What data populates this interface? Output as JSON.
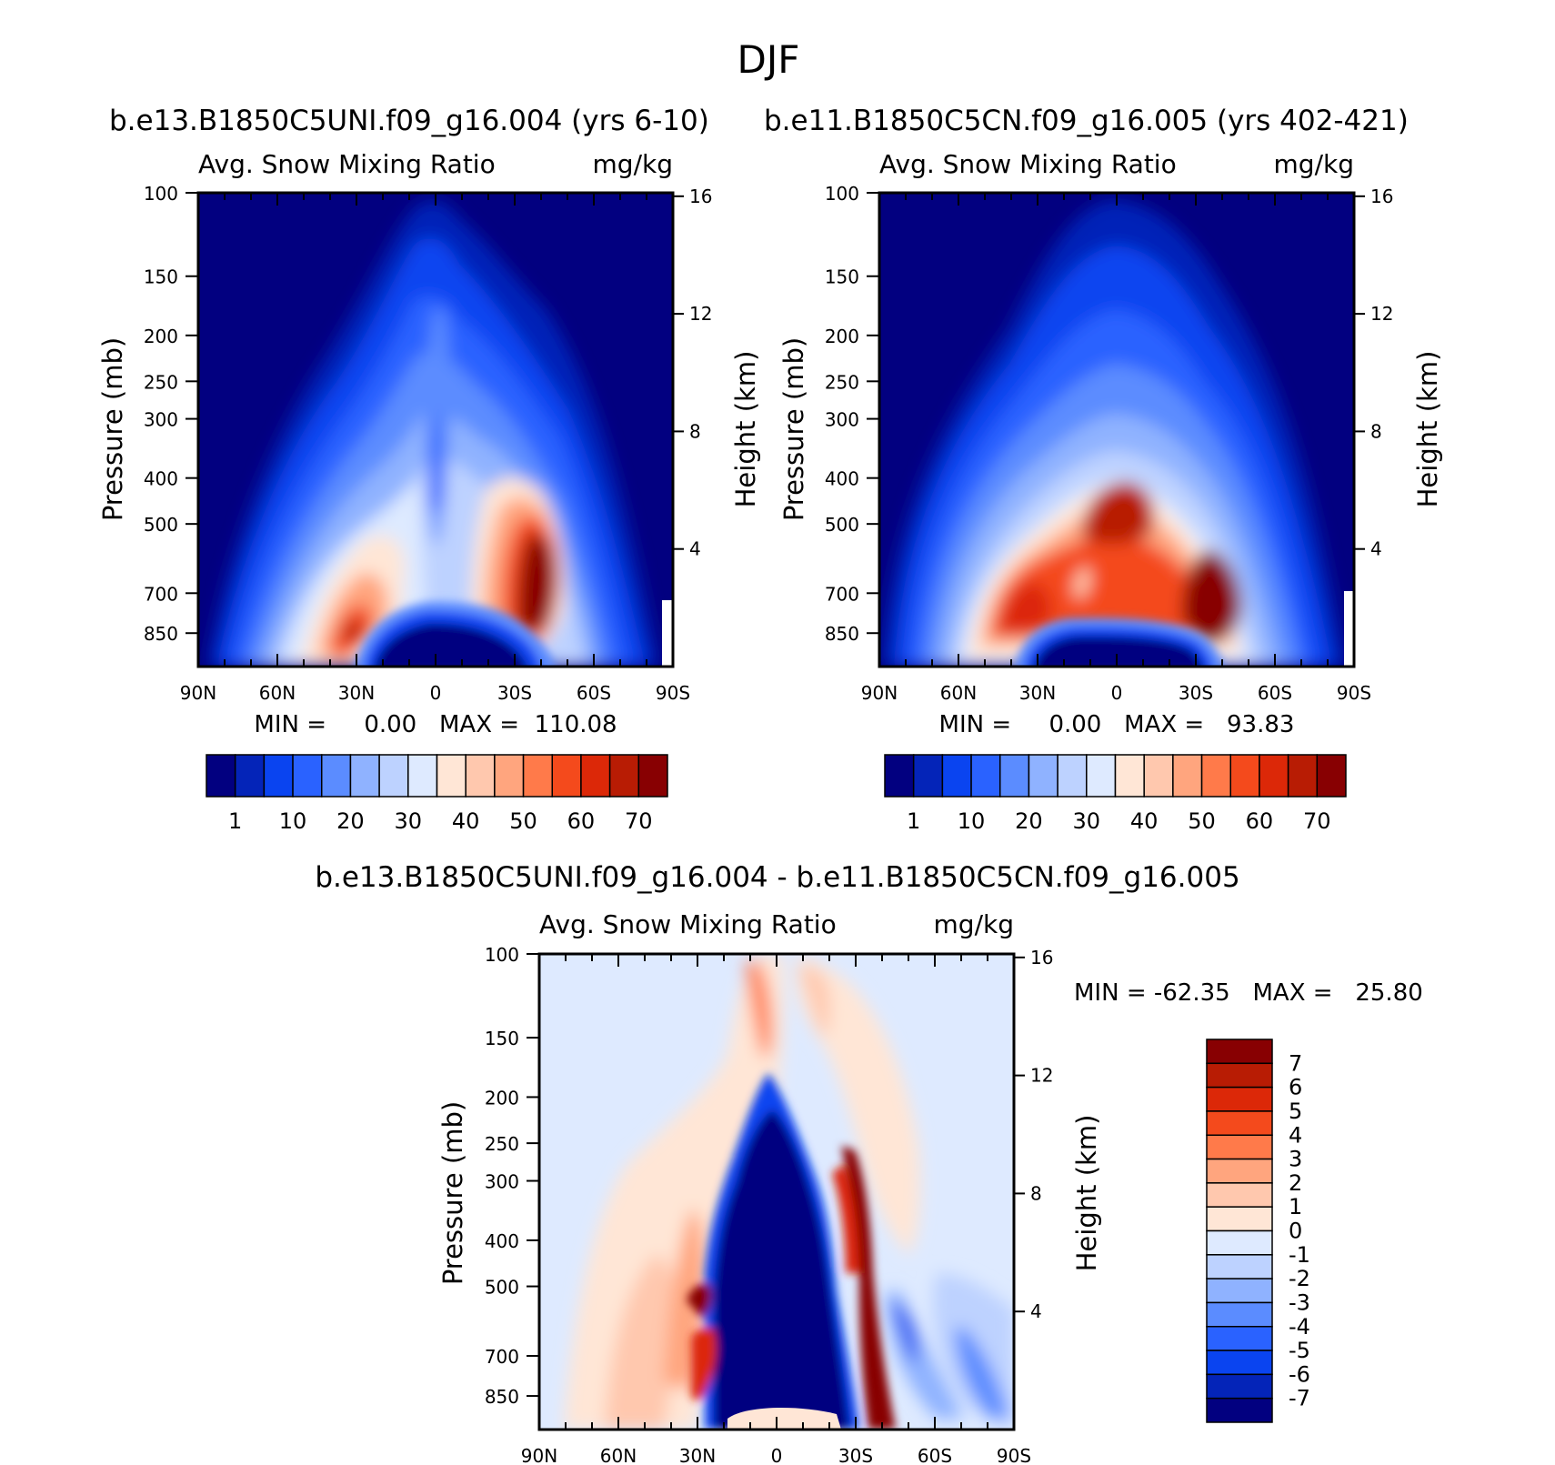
{
  "page_title": "DJF",
  "chart_data": [
    {
      "type": "heatmap",
      "title": "b.e13.B1850C5UNI.f09_g16.004 (yrs 6-10)",
      "subtitle_left": "Avg. Snow Mixing Ratio",
      "subtitle_right": "mg/kg",
      "ylabel": "Pressure (mb)",
      "y2label": "Height (km)",
      "x_ticks": [
        "90N",
        "60N",
        "30N",
        "0",
        "30S",
        "60S",
        "90S"
      ],
      "x_values": [
        90,
        60,
        30,
        0,
        -30,
        -60,
        -90
      ],
      "y_ticks": [
        100,
        150,
        200,
        250,
        300,
        400,
        500,
        700,
        850
      ],
      "ylim": [
        100,
        1000
      ],
      "height_ticks": [
        16,
        12,
        8,
        4
      ],
      "stats": "MIN =     0.00   MAX =  110.08",
      "min": 0.0,
      "max": 110.08,
      "colorbar_labels": [
        "1",
        "10",
        "20",
        "30",
        "40",
        "50",
        "60",
        "70"
      ],
      "colorbar_colors": [
        "#020080",
        "#0424b8",
        "#0a44f0",
        "#2a62ff",
        "#5b8cff",
        "#8fb2ff",
        "#bdd2ff",
        "#deeaff",
        "#ffe6d6",
        "#ffc8ae",
        "#ffa57e",
        "#ff7a4a",
        "#f44a1c",
        "#dc2808",
        "#b81c04",
        "#880002"
      ]
    },
    {
      "type": "heatmap",
      "title": "b.e11.B1850C5CN.f09_g16.005 (yrs 402-421)",
      "subtitle_left": "Avg. Snow Mixing Ratio",
      "subtitle_right": "mg/kg",
      "ylabel": "Pressure (mb)",
      "y2label": "Height (km)",
      "x_ticks": [
        "90N",
        "60N",
        "30N",
        "0",
        "30S",
        "60S",
        "90S"
      ],
      "x_values": [
        90,
        60,
        30,
        0,
        -30,
        -60,
        -90
      ],
      "y_ticks": [
        100,
        150,
        200,
        250,
        300,
        400,
        500,
        700,
        850
      ],
      "ylim": [
        100,
        1000
      ],
      "height_ticks": [
        16,
        12,
        8,
        4
      ],
      "stats": "MIN =     0.00   MAX =   93.83",
      "min": 0.0,
      "max": 93.83,
      "colorbar_labels": [
        "1",
        "10",
        "20",
        "30",
        "40",
        "50",
        "60",
        "70"
      ],
      "colorbar_colors": [
        "#020080",
        "#0424b8",
        "#0a44f0",
        "#2a62ff",
        "#5b8cff",
        "#8fb2ff",
        "#bdd2ff",
        "#deeaff",
        "#ffe6d6",
        "#ffc8ae",
        "#ffa57e",
        "#ff7a4a",
        "#f44a1c",
        "#dc2808",
        "#b81c04",
        "#880002"
      ]
    },
    {
      "type": "heatmap",
      "title": "b.e13.B1850C5UNI.f09_g16.004 - b.e11.B1850C5CN.f09_g16.005",
      "subtitle_left": "Avg. Snow Mixing Ratio",
      "subtitle_right": "mg/kg",
      "ylabel": "Pressure (mb)",
      "y2label": "Height (km)",
      "x_ticks": [
        "90N",
        "60N",
        "30N",
        "0",
        "30S",
        "60S",
        "90S"
      ],
      "x_values": [
        90,
        60,
        30,
        0,
        -30,
        -60,
        -90
      ],
      "y_ticks": [
        100,
        150,
        200,
        250,
        300,
        400,
        500,
        700,
        850
      ],
      "ylim": [
        100,
        1000
      ],
      "height_ticks": [
        16,
        12,
        8,
        4
      ],
      "stats": "MIN = -62.35   MAX =   25.80",
      "min": -62.35,
      "max": 25.8,
      "colorbar_labels": [
        "7",
        "6",
        "5",
        "4",
        "3",
        "2",
        "1",
        "0",
        "-1",
        "-2",
        "-3",
        "-4",
        "-5",
        "-6",
        "-7"
      ],
      "colorbar_colors": [
        "#880002",
        "#b81c04",
        "#dc2808",
        "#f44a1c",
        "#ff7a4a",
        "#ffa57e",
        "#ffc8ae",
        "#ffe6d6",
        "#deeaff",
        "#bdd2ff",
        "#8fb2ff",
        "#5b8cff",
        "#2a62ff",
        "#0a44f0",
        "#0424b8",
        "#020080"
      ]
    }
  ]
}
